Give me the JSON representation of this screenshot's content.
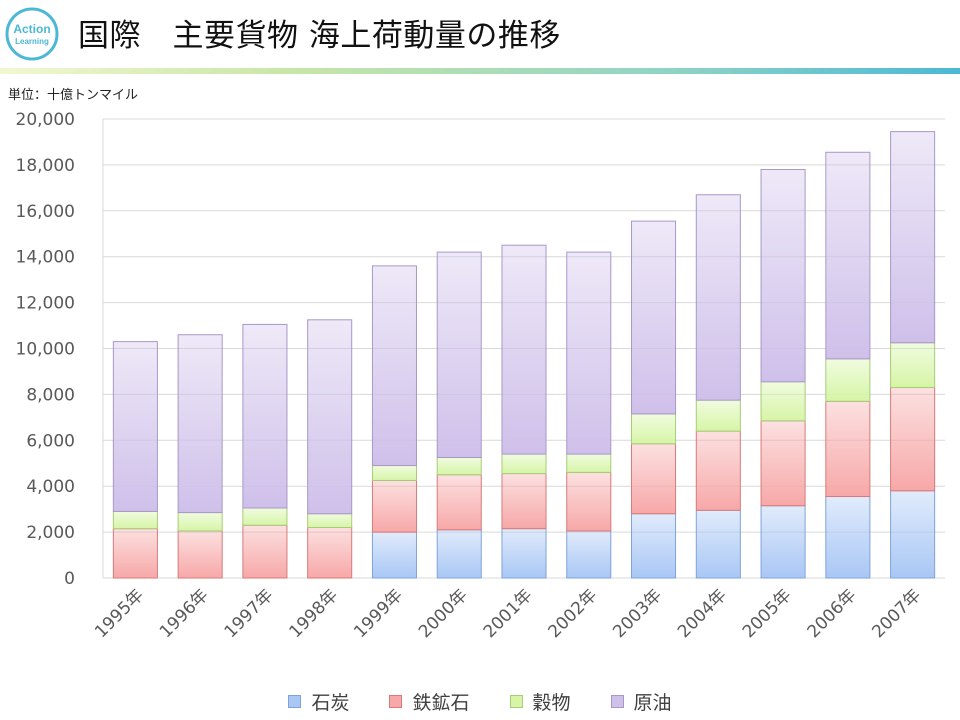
{
  "header": {
    "title": "国際　主要貨物 海上荷動量の推移",
    "logo_text_1": "Action",
    "logo_text_2": "Learning"
  },
  "unit_label": "単位：十億トンマイル",
  "colors": {
    "coal": "#a9c7f5",
    "iron_ore": "#f7a8a8",
    "grain": "#d6f5a6",
    "crude_oil": "#cfc0ea",
    "accent": "#4cb8d6"
  },
  "chart_data": {
    "type": "bar",
    "stacked": true,
    "title": "",
    "xlabel": "",
    "ylabel": "",
    "ylim": [
      0,
      20000
    ],
    "yticks": [
      0,
      2000,
      4000,
      6000,
      8000,
      10000,
      12000,
      14000,
      16000,
      18000,
      20000
    ],
    "ytick_labels": [
      "0",
      "2,000",
      "4,000",
      "6,000",
      "8,000",
      "10,000",
      "12,000",
      "14,000",
      "16,000",
      "18,000",
      "20,000"
    ],
    "grid": true,
    "legend_position": "bottom",
    "categories": [
      "1995年",
      "1996年",
      "1997年",
      "1998年",
      "1999年",
      "2000年",
      "2001年",
      "2002年",
      "2003年",
      "2004年",
      "2005年",
      "2006年",
      "2007年"
    ],
    "series": [
      {
        "name": "石炭",
        "values": [
          0,
          0,
          0,
          0,
          2000,
          2100,
          2150,
          2050,
          2800,
          2950,
          3150,
          3550,
          3800
        ]
      },
      {
        "name": "鉄鉱石",
        "values": [
          2150,
          2050,
          2300,
          2200,
          2250,
          2400,
          2400,
          2550,
          3050,
          3450,
          3700,
          4150,
          4500
        ]
      },
      {
        "name": "穀物",
        "values": [
          750,
          800,
          750,
          600,
          650,
          750,
          850,
          800,
          1300,
          1350,
          1700,
          1850,
          1950
        ]
      },
      {
        "name": "原油",
        "values": [
          7400,
          7750,
          8000,
          8450,
          8700,
          8950,
          9100,
          8800,
          8400,
          8950,
          9250,
          9000,
          9200
        ]
      }
    ]
  }
}
